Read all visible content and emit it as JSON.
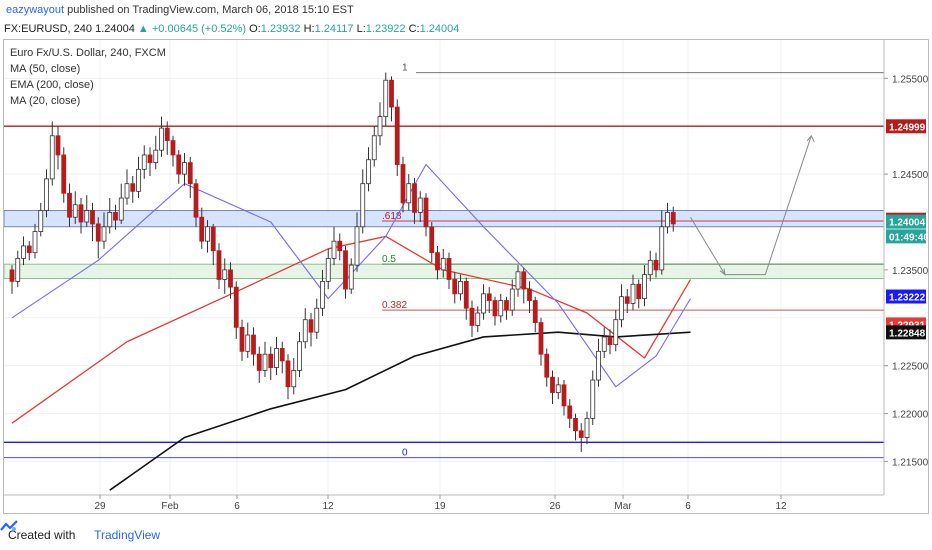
{
  "header": {
    "username": "eazywayout",
    "published_text": "published on TradingView.com, March 06, 2018 15:10 EST"
  },
  "symbol_bar": {
    "symbol": "FX:EURUSD, 240",
    "last": "1.24004",
    "arrow": "▲",
    "change": "+0.00645 (+0.52%)",
    "o_label": "O:",
    "o": "1.23932",
    "h_label": "H:",
    "h": "1.24117",
    "l_label": "L:",
    "l": "1.23922",
    "c_label": "C:",
    "c": "1.24004"
  },
  "legend": {
    "title": "Euro Fx/U.S. Dollar, 240, FXCM",
    "items": [
      "MA (50, close)",
      "EMA (200, close)",
      "MA (20, close)"
    ]
  },
  "footer": {
    "created_with": "Created with",
    "brand": "TradingView",
    "logo_icon": "tradingview-logo-icon"
  },
  "chart_data": {
    "type": "candlestick",
    "y_ticks": [
      "1.25500",
      "1.24500",
      "1.23500",
      "1.22500",
      "1.22000",
      "1.21500"
    ],
    "x_ticks": [
      "29",
      "Feb",
      "6",
      "12",
      "19",
      "26",
      "Mar",
      "6",
      "12"
    ],
    "ylim": [
      1.2115,
      1.259
    ],
    "price_labels": [
      {
        "text": "1.24999",
        "value": 1.24999,
        "color": "#b71c1c"
      },
      {
        "text": "1.24024",
        "value": 1.24024,
        "color": "#b71c1c"
      },
      {
        "text": "1.24004",
        "value": 1.24004,
        "color": "#26a69a"
      },
      {
        "text": "01:49:40",
        "value": 1.2385,
        "color": "#26a69a"
      },
      {
        "text": "1.23222",
        "value": 1.23222,
        "color": "#1a1aff"
      },
      {
        "text": "1.22931",
        "value": 1.22931,
        "color": "#e53935"
      },
      {
        "text": "1.22848",
        "value": 1.22848,
        "color": "#111111"
      }
    ],
    "fib_levels": [
      {
        "label": "1",
        "value": 1.2556
      },
      {
        "label": ".618",
        "value": 1.2401
      },
      {
        "label": "0.5",
        "value": 1.2356
      },
      {
        "label": "0.382",
        "value": 1.2308
      },
      {
        "label": "0",
        "value": 1.2154
      }
    ],
    "horizontal_levels": [
      {
        "value": 1.25,
        "color": "#b71c1c"
      },
      {
        "value": 1.217,
        "color": "#1a1aff"
      }
    ],
    "zones": [
      {
        "from": 1.2395,
        "to": 1.2412,
        "color": "#cfe0ff"
      },
      {
        "from": 1.2341,
        "to": 1.2356,
        "color": "#e3f3e3"
      }
    ],
    "candles": [
      [
        1.235,
        1.2338,
        1.2355,
        1.2325
      ],
      [
        1.2338,
        1.2362,
        1.237,
        1.2332
      ],
      [
        1.2362,
        1.2375,
        1.2385,
        1.2355
      ],
      [
        1.2375,
        1.2368,
        1.238,
        1.236
      ],
      [
        1.2368,
        1.239,
        1.2398,
        1.2362
      ],
      [
        1.239,
        1.2412,
        1.242,
        1.2385
      ],
      [
        1.2412,
        1.2445,
        1.2455,
        1.2405
      ],
      [
        1.2445,
        1.249,
        1.2505,
        1.2438
      ],
      [
        1.249,
        1.247,
        1.25,
        1.2455
      ],
      [
        1.247,
        1.243,
        1.2478,
        1.242
      ],
      [
        1.243,
        1.2405,
        1.244,
        1.2395
      ],
      [
        1.2405,
        1.2418,
        1.2432,
        1.2398
      ],
      [
        1.2418,
        1.24,
        1.2425,
        1.2388
      ],
      [
        1.24,
        1.2412,
        1.2428,
        1.2395
      ],
      [
        1.2412,
        1.2398,
        1.242,
        1.238
      ],
      [
        1.2398,
        1.238,
        1.2405,
        1.2362
      ],
      [
        1.238,
        1.2395,
        1.241,
        1.2372
      ],
      [
        1.2395,
        1.241,
        1.2425,
        1.2388
      ],
      [
        1.241,
        1.2402,
        1.2418,
        1.2392
      ],
      [
        1.2402,
        1.2425,
        1.244,
        1.2398
      ],
      [
        1.2425,
        1.244,
        1.2455,
        1.2418
      ],
      [
        1.244,
        1.2432,
        1.2448,
        1.242
      ],
      [
        1.2432,
        1.2455,
        1.2468,
        1.2425
      ],
      [
        1.2455,
        1.247,
        1.248,
        1.2445
      ],
      [
        1.247,
        1.2462,
        1.2478,
        1.2448
      ],
      [
        1.2462,
        1.2475,
        1.249,
        1.2455
      ],
      [
        1.2475,
        1.2498,
        1.251,
        1.2468
      ],
      [
        1.2498,
        1.2485,
        1.2505,
        1.247
      ],
      [
        1.2485,
        1.247,
        1.249,
        1.2458
      ],
      [
        1.247,
        1.245,
        1.2475,
        1.244
      ],
      [
        1.245,
        1.2462,
        1.2472,
        1.2438
      ],
      [
        1.2462,
        1.244,
        1.2468,
        1.2425
      ],
      [
        1.244,
        1.2405,
        1.2445,
        1.2395
      ],
      [
        1.2405,
        1.238,
        1.2415,
        1.2372
      ],
      [
        1.238,
        1.2395,
        1.2402,
        1.2368
      ],
      [
        1.2395,
        1.237,
        1.2398,
        1.2355
      ],
      [
        1.237,
        1.234,
        1.2378,
        1.233
      ],
      [
        1.234,
        1.235,
        1.2362,
        1.2325
      ],
      [
        1.235,
        1.2332,
        1.2358,
        1.232
      ],
      [
        1.2332,
        1.229,
        1.2338,
        1.2278
      ],
      [
        1.229,
        1.2265,
        1.2298,
        1.2255
      ],
      [
        1.2265,
        1.2282,
        1.2295,
        1.2258
      ],
      [
        1.2282,
        1.2262,
        1.229,
        1.225
      ],
      [
        1.2262,
        1.2245,
        1.227,
        1.2232
      ],
      [
        1.2245,
        1.2262,
        1.2275,
        1.2238
      ],
      [
        1.2262,
        1.2248,
        1.227,
        1.2235
      ],
      [
        1.2248,
        1.2268,
        1.228,
        1.224
      ],
      [
        1.2268,
        1.2255,
        1.2275,
        1.2242
      ],
      [
        1.2255,
        1.2228,
        1.2262,
        1.2215
      ],
      [
        1.2228,
        1.2245,
        1.2258,
        1.222
      ],
      [
        1.2245,
        1.2275,
        1.2285,
        1.2238
      ],
      [
        1.2275,
        1.2298,
        1.231,
        1.2268
      ],
      [
        1.2298,
        1.2285,
        1.2305,
        1.227
      ],
      [
        1.2285,
        1.231,
        1.232,
        1.2278
      ],
      [
        1.231,
        1.2338,
        1.235,
        1.2302
      ],
      [
        1.2338,
        1.2362,
        1.2372,
        1.233
      ],
      [
        1.2362,
        1.238,
        1.2395,
        1.2355
      ],
      [
        1.238,
        1.237,
        1.2388,
        1.236
      ],
      [
        1.237,
        1.233,
        1.2375,
        1.232
      ],
      [
        1.233,
        1.2355,
        1.2362,
        1.2325
      ],
      [
        1.2355,
        1.2395,
        1.241,
        1.2348
      ],
      [
        1.2395,
        1.244,
        1.2455,
        1.2388
      ],
      [
        1.244,
        1.2465,
        1.2478,
        1.2432
      ],
      [
        1.2465,
        1.249,
        1.25,
        1.2458
      ],
      [
        1.249,
        1.251,
        1.2525,
        1.248
      ],
      [
        1.251,
        1.2548,
        1.2556,
        1.25
      ],
      [
        1.2548,
        1.252,
        1.2552,
        1.2505
      ],
      [
        1.252,
        1.246,
        1.2528,
        1.2448
      ],
      [
        1.246,
        1.242,
        1.2468,
        1.241
      ],
      [
        1.242,
        1.244,
        1.245,
        1.2412
      ],
      [
        1.244,
        1.241,
        1.2446,
        1.2398
      ],
      [
        1.241,
        1.2425,
        1.2432,
        1.24
      ],
      [
        1.2425,
        1.2395,
        1.243,
        1.2385
      ],
      [
        1.2395,
        1.2368,
        1.24,
        1.2358
      ],
      [
        1.2368,
        1.235,
        1.2375,
        1.234
      ],
      [
        1.235,
        1.2362,
        1.2372,
        1.2342
      ],
      [
        1.2362,
        1.234,
        1.2368,
        1.233
      ],
      [
        1.234,
        1.2325,
        1.2348,
        1.2315
      ],
      [
        1.2325,
        1.2338,
        1.2345,
        1.2318
      ],
      [
        1.2338,
        1.231,
        1.2342,
        1.2298
      ],
      [
        1.231,
        1.2292,
        1.2318,
        1.228
      ],
      [
        1.2292,
        1.2305,
        1.2312,
        1.2285
      ],
      [
        1.2305,
        1.2325,
        1.2335,
        1.2298
      ],
      [
        1.2325,
        1.2318,
        1.2332,
        1.2305
      ],
      [
        1.2318,
        1.2302,
        1.2322,
        1.2292
      ],
      [
        1.2302,
        1.2318,
        1.2325,
        1.2295
      ],
      [
        1.2318,
        1.2308,
        1.2322,
        1.2298
      ],
      [
        1.2308,
        1.233,
        1.234,
        1.2302
      ],
      [
        1.233,
        1.2348,
        1.2355,
        1.2322
      ],
      [
        1.2348,
        1.233,
        1.2352,
        1.2315
      ],
      [
        1.233,
        1.2318,
        1.2338,
        1.2305
      ],
      [
        1.2318,
        1.2295,
        1.2322,
        1.2285
      ],
      [
        1.2295,
        1.2262,
        1.23,
        1.225
      ],
      [
        1.2262,
        1.2238,
        1.2268,
        1.2228
      ],
      [
        1.2238,
        1.2222,
        1.2245,
        1.221
      ],
      [
        1.2222,
        1.223,
        1.2238,
        1.2215
      ],
      [
        1.223,
        1.2208,
        1.2235,
        1.2198
      ],
      [
        1.2208,
        1.2195,
        1.2215,
        1.2185
      ],
      [
        1.2195,
        1.2182,
        1.22,
        1.2172
      ],
      [
        1.2182,
        1.2175,
        1.219,
        1.216
      ],
      [
        1.2175,
        1.2195,
        1.2202,
        1.2168
      ],
      [
        1.2195,
        1.2235,
        1.2245,
        1.2188
      ],
      [
        1.2235,
        1.2265,
        1.2278,
        1.2228
      ],
      [
        1.2265,
        1.228,
        1.229,
        1.2258
      ],
      [
        1.228,
        1.2272,
        1.2288,
        1.2262
      ],
      [
        1.2272,
        1.2298,
        1.2308,
        1.2265
      ],
      [
        1.2298,
        1.2322,
        1.2335,
        1.229
      ],
      [
        1.2322,
        1.2315,
        1.233,
        1.2305
      ],
      [
        1.2315,
        1.2335,
        1.2345,
        1.2308
      ],
      [
        1.2335,
        1.232,
        1.234,
        1.231
      ],
      [
        1.232,
        1.2345,
        1.2355,
        1.2312
      ],
      [
        1.2345,
        1.236,
        1.237,
        1.2338
      ],
      [
        1.236,
        1.235,
        1.2368,
        1.2342
      ],
      [
        1.235,
        1.2395,
        1.2412,
        1.2345
      ],
      [
        1.2395,
        1.241,
        1.242,
        1.2388
      ],
      [
        1.241,
        1.2398,
        1.2416,
        1.239
      ]
    ],
    "ma50": [
      [
        0,
        1.219
      ],
      [
        20,
        1.2275
      ],
      [
        40,
        1.233
      ],
      [
        55,
        1.2372
      ],
      [
        65,
        1.2385
      ],
      [
        75,
        1.235
      ],
      [
        90,
        1.233
      ],
      [
        100,
        1.2305
      ],
      [
        110,
        1.2258
      ],
      [
        118,
        1.234
      ]
    ],
    "ema200": [
      [
        17,
        1.212
      ],
      [
        30,
        1.2175
      ],
      [
        45,
        1.2205
      ],
      [
        58,
        1.2225
      ],
      [
        70,
        1.226
      ],
      [
        82,
        1.228
      ],
      [
        95,
        1.2285
      ],
      [
        105,
        1.228
      ],
      [
        118,
        1.2285
      ]
    ],
    "ma20": [
      [
        0,
        1.23
      ],
      [
        15,
        1.236
      ],
      [
        30,
        1.244
      ],
      [
        45,
        1.24
      ],
      [
        55,
        1.232
      ],
      [
        65,
        1.2385
      ],
      [
        72,
        1.246
      ],
      [
        82,
        1.2395
      ],
      [
        95,
        1.2315
      ],
      [
        105,
        1.2228
      ],
      [
        112,
        1.226
      ],
      [
        118,
        1.232
      ]
    ],
    "projection": [
      [
        118,
        1.2405
      ],
      [
        124,
        1.2345
      ],
      [
        131,
        1.2345
      ],
      [
        139,
        1.249
      ]
    ]
  }
}
